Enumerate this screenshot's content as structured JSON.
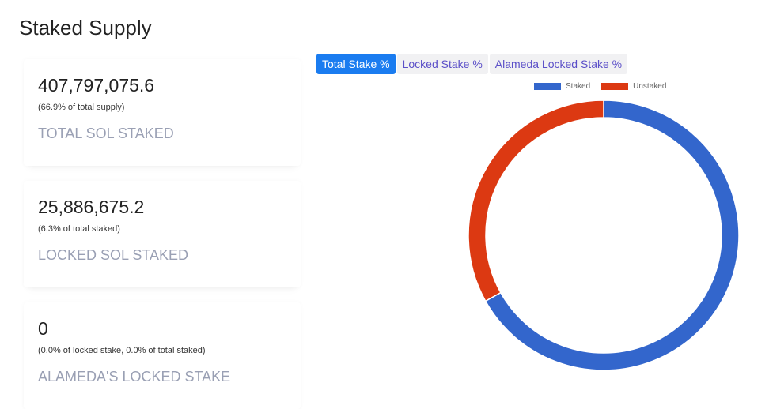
{
  "title": "Staked Supply",
  "cards": [
    {
      "value": "407,797,075.6",
      "sub": "(66.9% of total supply)",
      "label": "TOTAL SOL STAKED"
    },
    {
      "value": "25,886,675.2",
      "sub": "(6.3% of total staked)",
      "label": "LOCKED SOL STAKED"
    },
    {
      "value": "0",
      "sub": "(0.0% of locked stake, 0.0% of total staked)",
      "label": "ALAMEDA'S LOCKED STAKE"
    }
  ],
  "tabs": [
    {
      "label": "Total Stake %",
      "active": true
    },
    {
      "label": "Locked Stake %"
    },
    {
      "label": "Alameda Locked Stake %"
    }
  ],
  "chart_data": {
    "type": "pie",
    "variant": "donut",
    "legend_position": "top-right",
    "series": [
      {
        "name": "Staked",
        "value": 66.9,
        "color": "#3366cc"
      },
      {
        "name": "Unstaked",
        "value": 33.1,
        "color": "#dc3912"
      }
    ]
  }
}
